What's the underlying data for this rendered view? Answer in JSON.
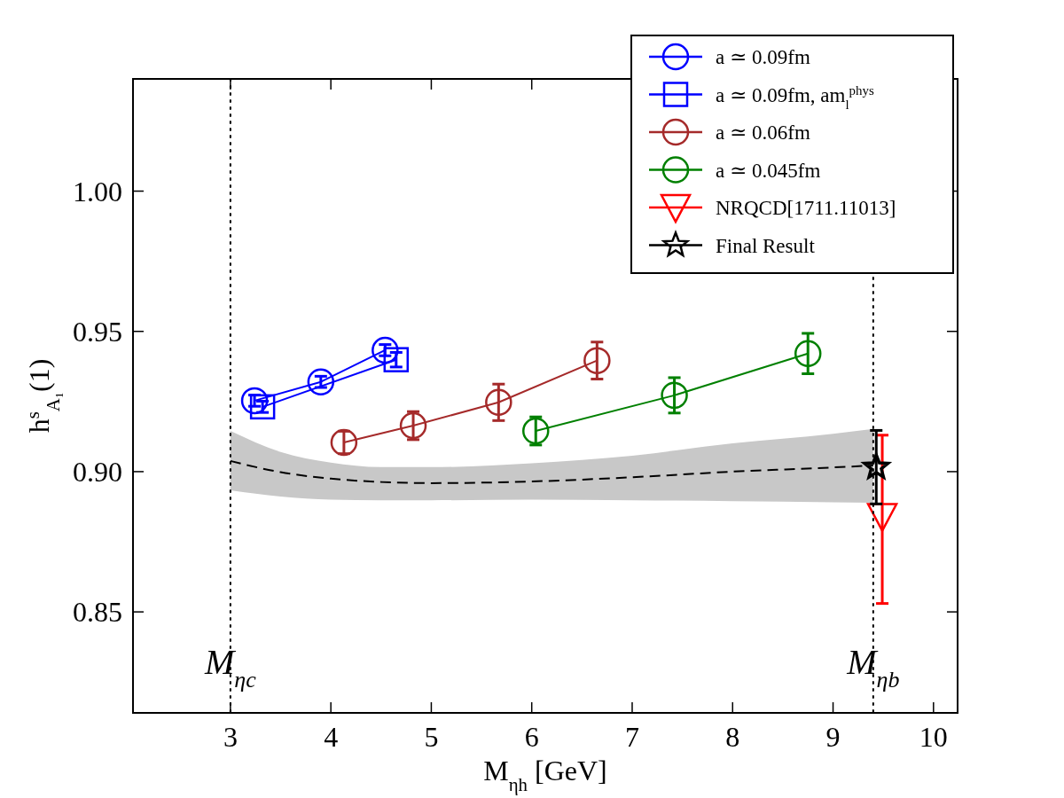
{
  "chart_data": {
    "type": "line",
    "xlabel": "M$_{ηh}$ [GeV]",
    "ylabel": "h$^{s}$$_{A₁}$(1)",
    "xlim": [
      2.03,
      10.24
    ],
    "xticks": [
      3,
      4,
      5,
      6,
      7,
      8,
      9,
      10
    ],
    "ylim": [
      0.814,
      1.04
    ],
    "yticks": [
      0.85,
      {
        "value": 0.9,
        "label": "0.90"
      },
      0.95,
      {
        "value": 1.0,
        "label": "1.00"
      }
    ],
    "grid": false,
    "legend": "top right",
    "ref_lines": [
      {
        "axis": "x",
        "value": 3,
        "label": "M$_{ηc}$",
        "color": "#000000",
        "line_style": "dotted"
      },
      {
        "axis": "x",
        "value": 9.4,
        "label": "M$_{ηb}$",
        "color": "#000000",
        "line_style": "dotted"
      }
    ],
    "series": [
      {
        "color": "#000000",
        "line_style": "dashed",
        "marker": "none",
        "x": [
          3,
          3.5,
          4,
          4.5,
          5,
          6,
          7,
          8,
          9,
          9.4
        ],
        "values": [
          0.9038,
          0.8998,
          0.8975,
          0.8963,
          0.8959,
          0.8965,
          0.898,
          0.9,
          0.9015,
          0.9022
        ],
        "lower": [
          0.8933,
          0.8911,
          0.89,
          0.8898,
          0.8898,
          0.89,
          0.8898,
          0.8895,
          0.8891,
          0.8889
        ],
        "upper": [
          0.9145,
          0.907,
          0.9032,
          0.9016,
          0.9016,
          0.903,
          0.9057,
          0.9101,
          0.9135,
          0.9152
        ]
      },
      {
        "name": "a ≃ 0.09fm",
        "color": "#0000ff",
        "marker": "circle",
        "x": [
          3.24,
          3.9,
          4.54
        ],
        "values": [
          0.9253,
          0.932,
          0.9433
        ],
        "errors": [
          0.002,
          0.002,
          0.002
        ]
      },
      {
        "name": "a ≃ 0.09fm, am$_{l}$$^{phys}$",
        "color": "#0000ff",
        "marker": "square",
        "x": [
          3.32,
          4.65
        ],
        "values": [
          0.9231,
          0.9399
        ],
        "errors": [
          0.002,
          0.0026
        ]
      },
      {
        "name": "a ≃ 0.06fm",
        "color": "#a52a2a",
        "marker": "circle",
        "x": [
          4.13,
          4.82,
          5.67,
          6.65
        ],
        "values": [
          0.9104,
          0.9164,
          0.9247,
          0.9396
        ],
        "errors": [
          0.004,
          0.005,
          0.0065,
          0.0066
        ]
      },
      {
        "name": "a ≃ 0.045fm",
        "color": "#008000",
        "marker": "circle",
        "x": [
          6.04,
          7.42,
          8.75
        ],
        "values": [
          0.9145,
          0.9272,
          0.9421
        ],
        "errors": [
          0.005,
          0.0063,
          0.0072
        ]
      },
      {
        "name": "NRQCD[1711.11013]",
        "type": "scatter",
        "color": "#ff0000",
        "marker": "triangle",
        "x": [
          9.49
        ],
        "values": [
          0.884
        ],
        "errors": [
          [
            0.853,
            0.913
          ]
        ]
      },
      {
        "name": "Final Result",
        "type": "scatter",
        "color": "#000000",
        "marker": "star",
        "x": [
          9.43
        ],
        "values": [
          0.9016
        ],
        "errors": [
          0.0131
        ]
      }
    ]
  }
}
